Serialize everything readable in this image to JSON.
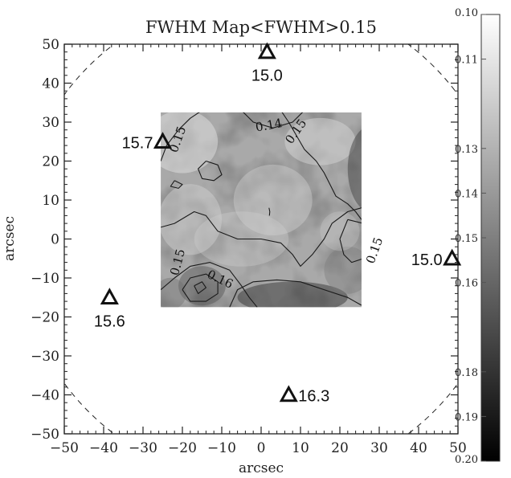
{
  "chart_data": {
    "type": "heatmap",
    "title": "FWHM Map<FWHM>0.15",
    "xlabel": "arcsec",
    "ylabel": "arcsec",
    "xlim": [
      -50,
      50
    ],
    "ylim": [
      -50,
      50
    ],
    "x_ticks": [
      -50,
      -40,
      -30,
      -20,
      -10,
      0,
      10,
      20,
      30,
      40,
      50
    ],
    "y_ticks": [
      -50,
      -40,
      -30,
      -20,
      -10,
      0,
      10,
      20,
      30,
      40,
      50
    ],
    "x_tick_labels": [
      "−50",
      "−40",
      "−30",
      "−20",
      "−10",
      "0",
      "10",
      "20",
      "30",
      "40",
      "50"
    ],
    "y_tick_labels": [
      "−50",
      "−40",
      "−30",
      "−20",
      "−10",
      "0",
      "10",
      "20",
      "30",
      "40",
      "50"
    ],
    "map_extent": {
      "x": [
        -25.5,
        25.5
      ],
      "y": [
        -17.5,
        32.5
      ]
    },
    "colorbar": {
      "range": [
        0.1,
        0.2
      ],
      "ticks": [
        0.1,
        0.11,
        0.13,
        0.14,
        0.15,
        0.16,
        0.18,
        0.19,
        0.2
      ],
      "tick_labels": [
        "0.10",
        "0.11",
        "0.13",
        "0.14",
        "0.15",
        "0.16",
        "0.18",
        "0.19",
        "0.20"
      ]
    },
    "contour_labels": [
      {
        "text": "0.14",
        "x": 2,
        "y": 29,
        "angle": -10
      },
      {
        "text": "0.15",
        "x": 9,
        "y": 27.5,
        "angle": -55
      },
      {
        "text": "0.15",
        "x": -21,
        "y": 25.5,
        "angle": -70
      },
      {
        "text": "0.15",
        "x": 29,
        "y": -3,
        "angle": -70
      },
      {
        "text": "0.15",
        "x": -21,
        "y": -6,
        "angle": -75
      },
      {
        "text": "0.16",
        "x": -10.5,
        "y": -10.5,
        "angle": 25
      }
    ],
    "markers": [
      {
        "label": "15.0",
        "x": 1.5,
        "y": 48,
        "label_pos": "below"
      },
      {
        "label": "15.7",
        "x": -25,
        "y": 25,
        "label_pos": "left"
      },
      {
        "label": "15.0",
        "x": 48.5,
        "y": -5,
        "label_pos": "left"
      },
      {
        "label": "15.6",
        "x": -38.5,
        "y": -15,
        "label_pos": "below"
      },
      {
        "label": "16.3",
        "x": 7,
        "y": -40,
        "label_pos": "right"
      }
    ],
    "dashed_circle": {
      "center": [
        0,
        0
      ],
      "radius": 62
    },
    "grid": false
  }
}
